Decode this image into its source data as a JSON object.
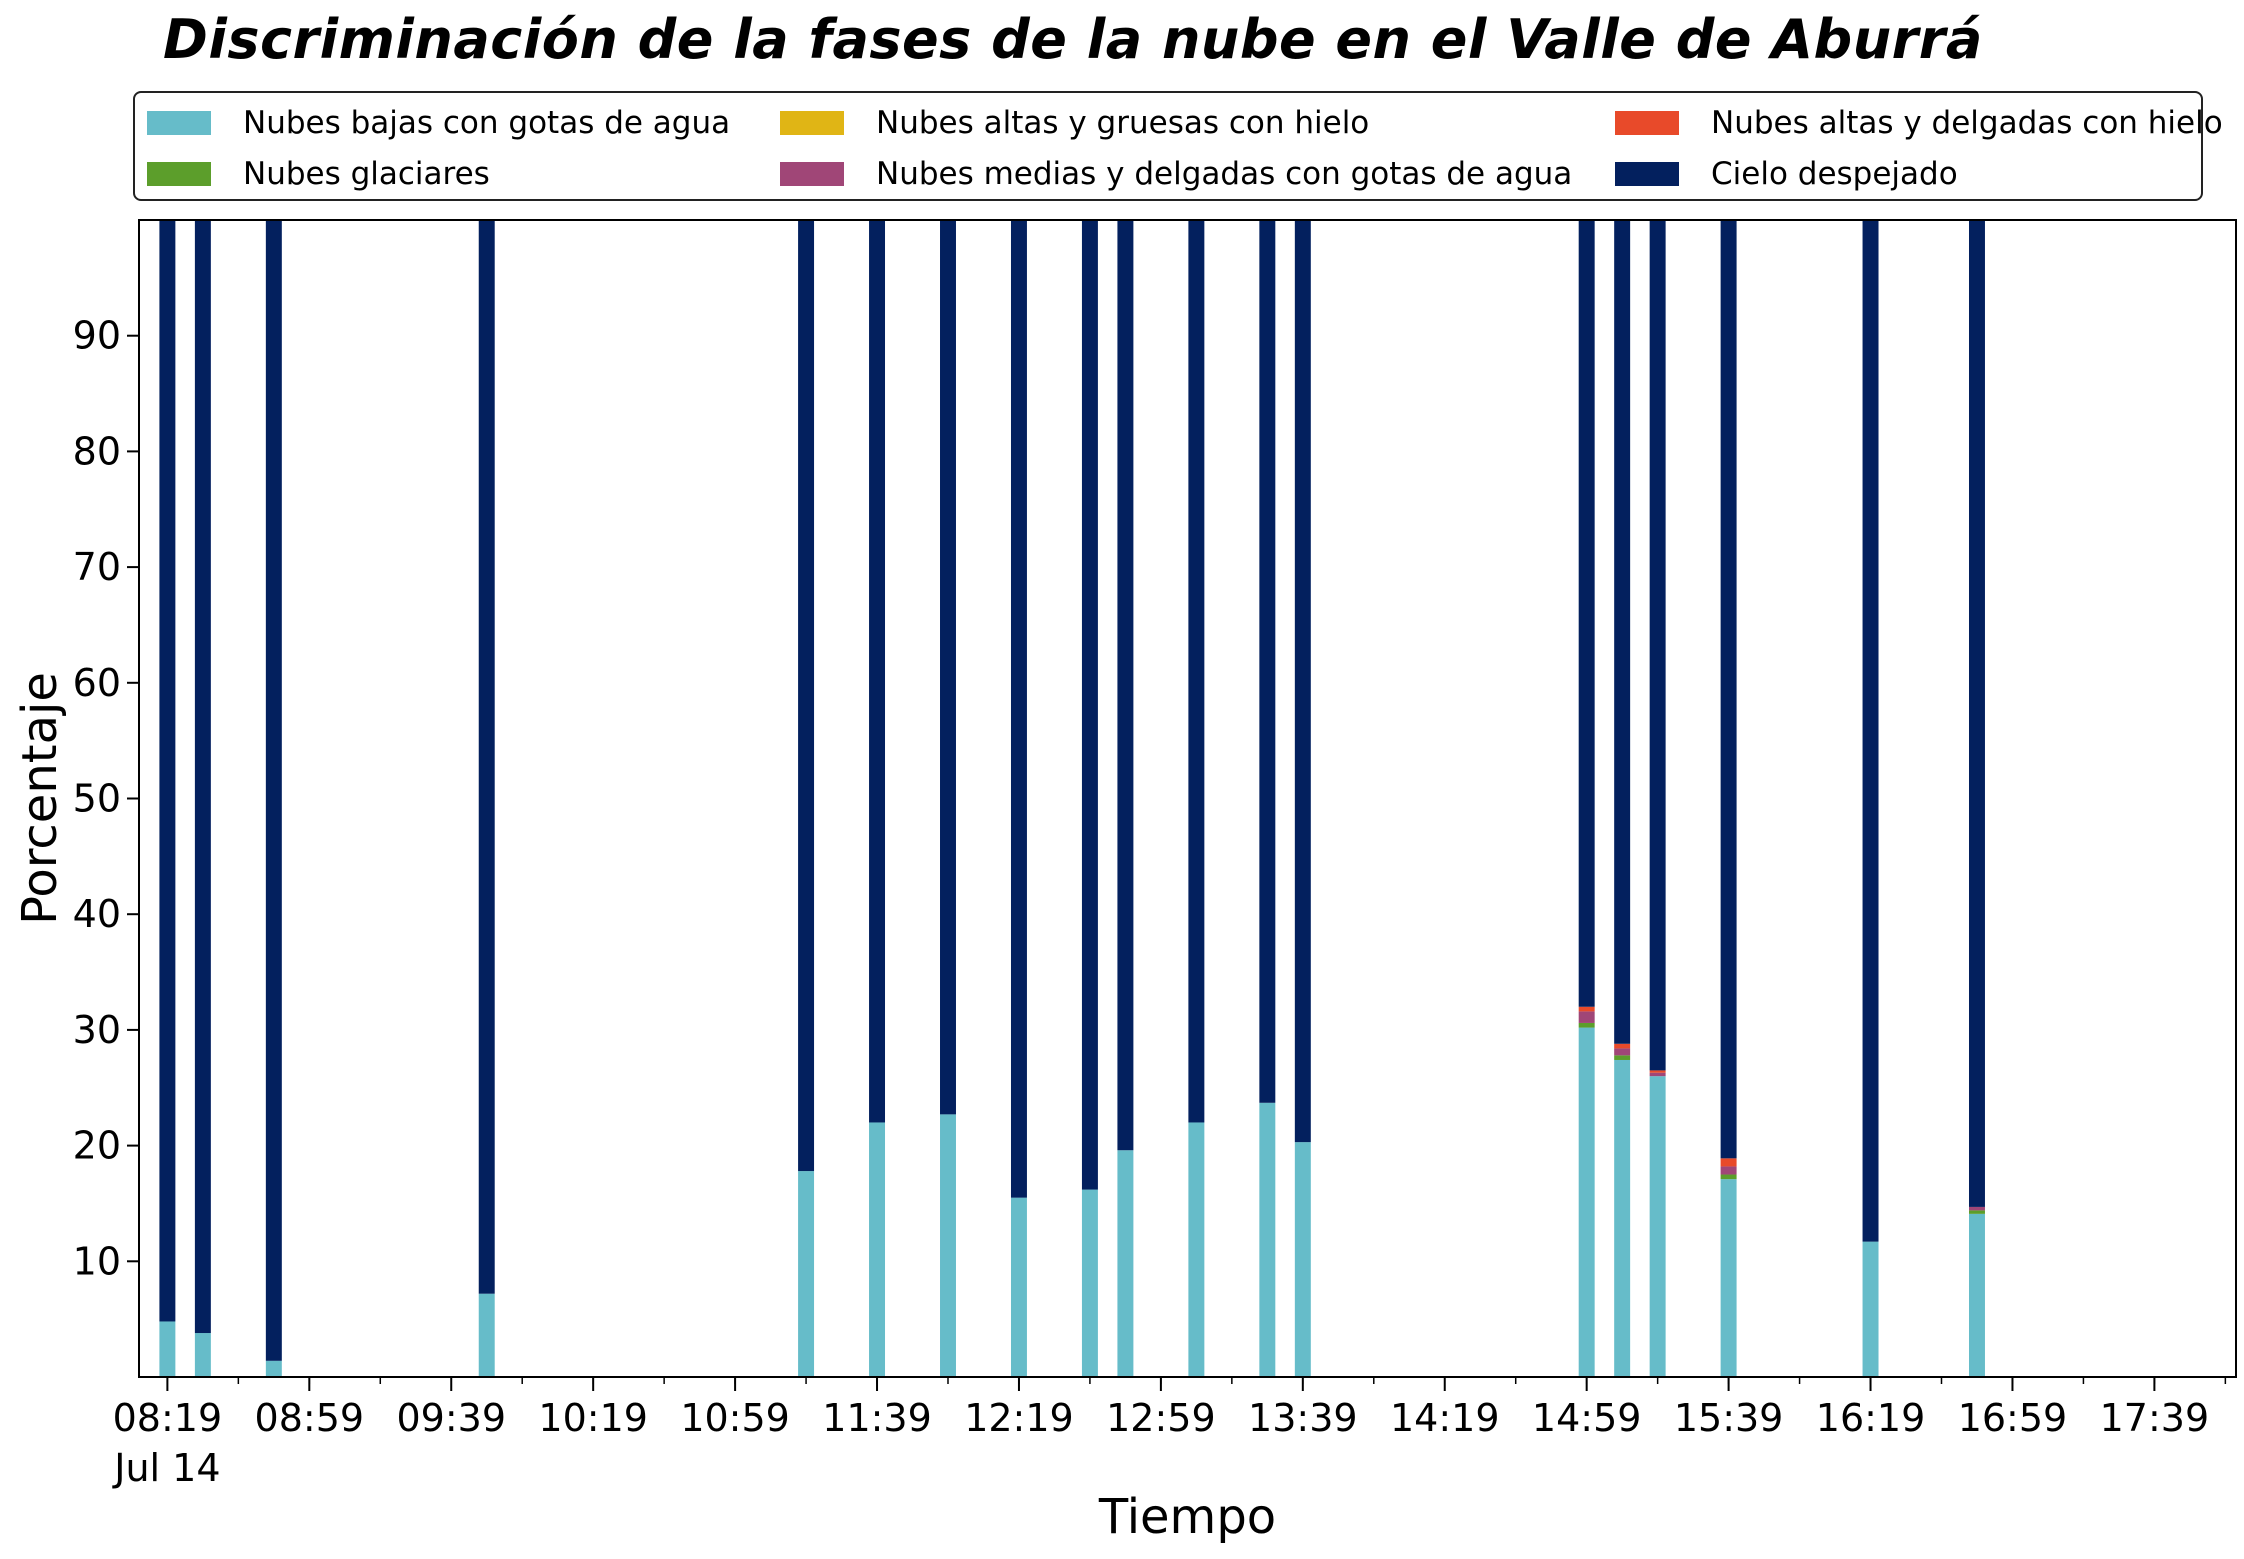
{
  "chart_data": {
    "type": "bar",
    "stacked": true,
    "title": "Discriminación de la fases de la nube en el Valle de Aburrá",
    "xlabel": "Tiempo",
    "ylabel": "Porcentaje",
    "ylim": [
      0,
      100
    ],
    "yticks": [
      10,
      20,
      30,
      40,
      50,
      60,
      70,
      80,
      90
    ],
    "x_range_minutes": [
      "08:11",
      "18:02"
    ],
    "bar_width_minutes": 4.5,
    "x_tick_labels": [
      {
        "label": "08:19",
        "sub": "Jul 14",
        "time": "08:19"
      },
      {
        "label": "08:59",
        "time": "08:59"
      },
      {
        "label": "09:39",
        "time": "09:39"
      },
      {
        "label": "10:19",
        "time": "10:19"
      },
      {
        "label": "10:59",
        "time": "10:59"
      },
      {
        "label": "11:39",
        "time": "11:39"
      },
      {
        "label": "12:19",
        "time": "12:19"
      },
      {
        "label": "12:59",
        "time": "12:59"
      },
      {
        "label": "13:39",
        "time": "13:39"
      },
      {
        "label": "14:19",
        "time": "14:19"
      },
      {
        "label": "14:59",
        "time": "14:59"
      },
      {
        "label": "15:39",
        "time": "15:39"
      },
      {
        "label": "16:19",
        "time": "16:19"
      },
      {
        "label": "16:59",
        "time": "16:59"
      },
      {
        "label": "17:39",
        "time": "17:39"
      }
    ],
    "x_minor_tick_minutes": 20,
    "legend": {
      "position": "top",
      "columns": 3
    },
    "series": [
      {
        "key": "low",
        "name": "Nubes bajas con gotas de agua",
        "color": "#66bcc9"
      },
      {
        "key": "glacial",
        "name": "Nubes glaciares",
        "color": "#5c9e2b"
      },
      {
        "key": "highthick",
        "name": "Nubes altas y gruesas con hielo",
        "color": "#e0b515"
      },
      {
        "key": "midthin",
        "name": "Nubes medias y delgadas con gotas de agua",
        "color": "#a04677"
      },
      {
        "key": "highthin",
        "name": "Nubes altas y delgadas con hielo",
        "color": "#e84a2a"
      },
      {
        "key": "clear",
        "name": "Cielo despejado",
        "color": "#03205e"
      }
    ],
    "bars": [
      {
        "time": "08:19",
        "low": 4.8,
        "glacial": 0,
        "highthick": 0,
        "midthin": 0,
        "highthin": 0,
        "clear": 95.2
      },
      {
        "time": "08:29",
        "low": 3.8,
        "glacial": 0,
        "highthick": 0,
        "midthin": 0,
        "highthin": 0,
        "clear": 96.2
      },
      {
        "time": "08:49",
        "low": 1.4,
        "glacial": 0,
        "highthick": 0,
        "midthin": 0,
        "highthin": 0,
        "clear": 98.6
      },
      {
        "time": "09:49",
        "low": 7.2,
        "glacial": 0,
        "highthick": 0,
        "midthin": 0,
        "highthin": 0,
        "clear": 92.8
      },
      {
        "time": "11:19",
        "low": 17.8,
        "glacial": 0,
        "highthick": 0,
        "midthin": 0,
        "highthin": 0,
        "clear": 82.2
      },
      {
        "time": "11:39",
        "low": 22.0,
        "glacial": 0,
        "highthick": 0,
        "midthin": 0,
        "highthin": 0,
        "clear": 78.0
      },
      {
        "time": "11:59",
        "low": 22.7,
        "glacial": 0,
        "highthick": 0,
        "midthin": 0,
        "highthin": 0,
        "clear": 77.3
      },
      {
        "time": "12:19",
        "low": 15.5,
        "glacial": 0,
        "highthick": 0,
        "midthin": 0,
        "highthin": 0,
        "clear": 84.5
      },
      {
        "time": "12:39",
        "low": 16.2,
        "glacial": 0,
        "highthick": 0,
        "midthin": 0,
        "highthin": 0,
        "clear": 83.8
      },
      {
        "time": "12:49",
        "low": 19.6,
        "glacial": 0,
        "highthick": 0,
        "midthin": 0,
        "highthin": 0,
        "clear": 80.4
      },
      {
        "time": "13:09",
        "low": 22.0,
        "glacial": 0,
        "highthick": 0,
        "midthin": 0,
        "highthin": 0,
        "clear": 78.0
      },
      {
        "time": "13:29",
        "low": 23.7,
        "glacial": 0,
        "highthick": 0,
        "midthin": 0,
        "highthin": 0,
        "clear": 76.3
      },
      {
        "time": "13:39",
        "low": 20.3,
        "glacial": 0,
        "highthick": 0,
        "midthin": 0,
        "highthin": 0,
        "clear": 79.7
      },
      {
        "time": "14:59",
        "low": 30.2,
        "glacial": 0.4,
        "highthick": 0,
        "midthin": 1.0,
        "highthin": 0.4,
        "clear": 68.0
      },
      {
        "time": "15:09",
        "low": 27.4,
        "glacial": 0.4,
        "highthick": 0,
        "midthin": 0.6,
        "highthin": 0.4,
        "clear": 71.2
      },
      {
        "time": "15:19",
        "low": 26.0,
        "glacial": 0,
        "highthick": 0,
        "midthin": 0.3,
        "highthin": 0.2,
        "clear": 73.5
      },
      {
        "time": "15:39",
        "low": 17.1,
        "glacial": 0.4,
        "highthick": 0,
        "midthin": 0.7,
        "highthin": 0.7,
        "clear": 81.1
      },
      {
        "time": "16:19",
        "low": 11.7,
        "glacial": 0,
        "highthick": 0,
        "midthin": 0,
        "highthin": 0,
        "clear": 88.3
      },
      {
        "time": "16:49",
        "low": 14.1,
        "glacial": 0.3,
        "highthick": 0,
        "midthin": 0.3,
        "highthin": 0,
        "clear": 85.3
      }
    ]
  }
}
